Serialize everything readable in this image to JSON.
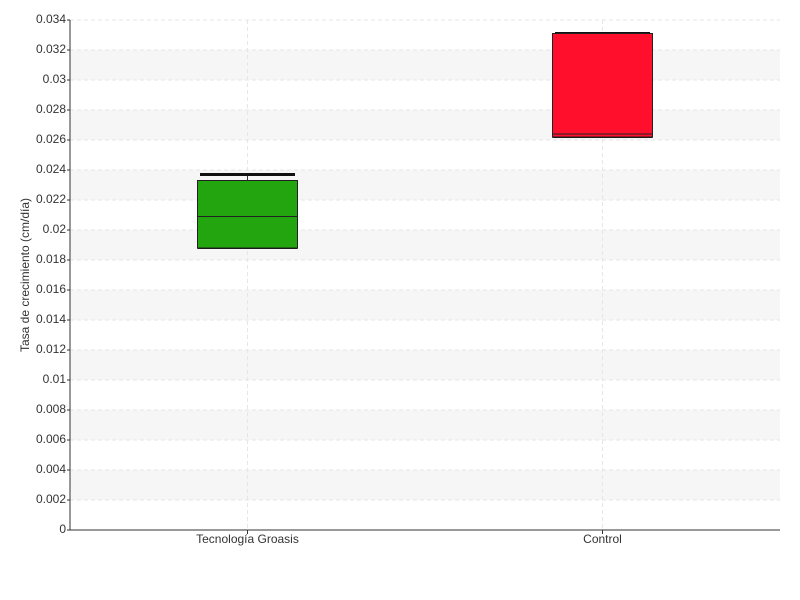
{
  "chart_data": {
    "type": "box",
    "y_label": "Tasa de crecimiento (cm/día)",
    "categories": [
      "Tecnología Groasis",
      "Control"
    ],
    "boxes": [
      {
        "min": 0.0188,
        "q1": 0.0188,
        "median": 0.0209,
        "q3": 0.0233,
        "max": 0.0237,
        "color": "#22a50f"
      },
      {
        "min": 0.0262,
        "q1": 0.0262,
        "median": 0.0264,
        "q3": 0.0331,
        "max": 0.0331,
        "color": "#ff0f2b"
      }
    ],
    "ylim": [
      0,
      0.034
    ],
    "yticks": [
      0,
      0.002,
      0.004,
      0.006,
      0.008,
      0.01,
      0.012,
      0.014,
      0.016,
      0.018,
      0.02,
      0.022,
      0.024,
      0.026,
      0.028,
      0.03,
      0.032,
      0.034
    ],
    "grid": true
  }
}
